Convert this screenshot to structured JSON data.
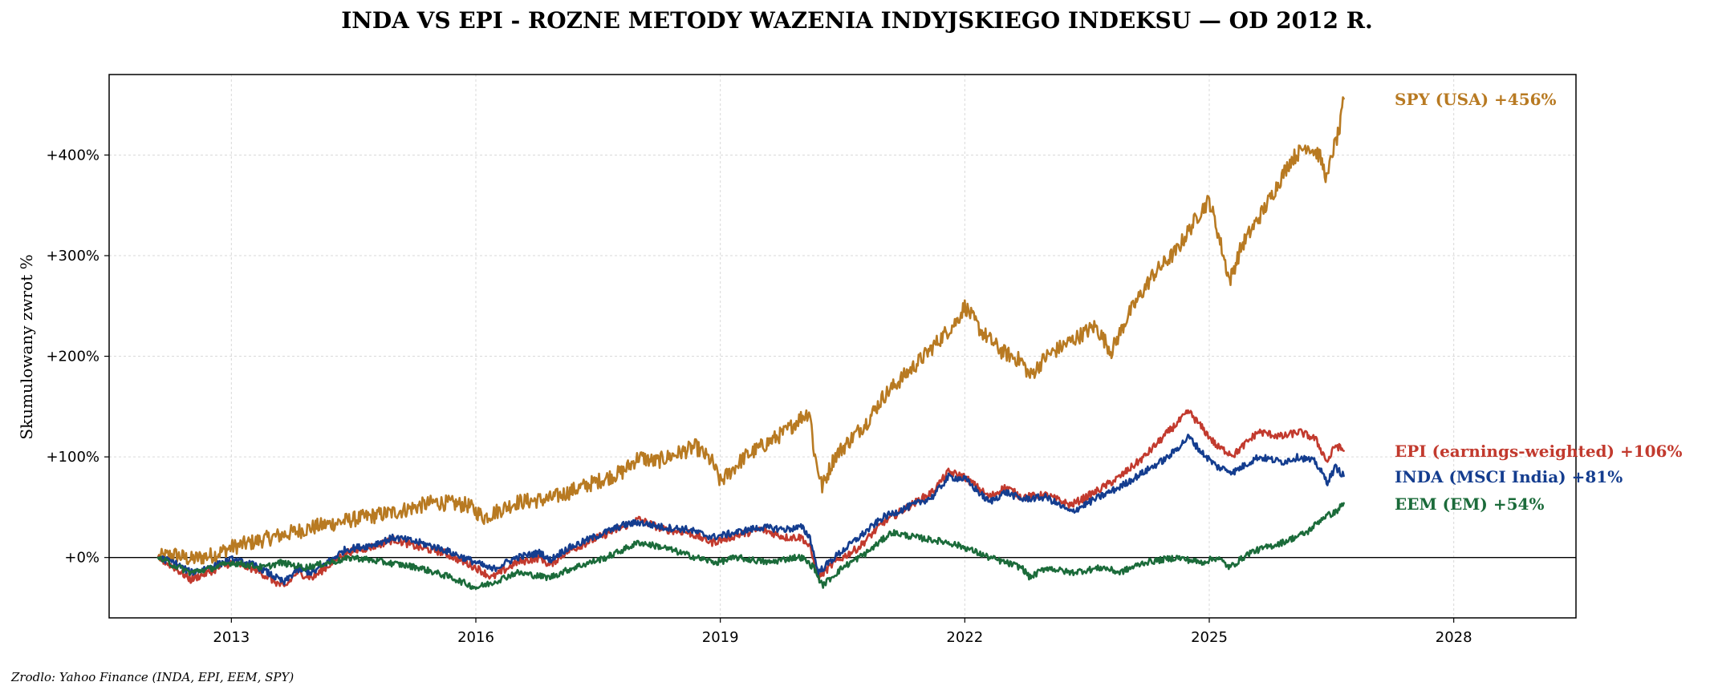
{
  "chart_data": {
    "type": "line",
    "title": "INDA VS EPI - ROZNE METODY WAZENIA INDYJSKIEGO INDEKSU — OD 2012 R.",
    "xlabel": "",
    "ylabel": "Skumulowany zwrot %",
    "source": "Zrodlo: Yahoo Finance (INDA, EPI, EEM, SPY)",
    "xlim": [
      2011.5,
      2029.5
    ],
    "ylim": [
      -60,
      480
    ],
    "x_ticks": [
      2013,
      2016,
      2019,
      2022,
      2025,
      2028
    ],
    "x_tick_labels": [
      "2013",
      "2016",
      "2019",
      "2022",
      "2025",
      "2028"
    ],
    "y_ticks": [
      0,
      100,
      200,
      300,
      400
    ],
    "y_tick_labels": [
      "+0%",
      "+100%",
      "+200%",
      "+300%",
      "+400%"
    ],
    "grid": true,
    "zero_line": true,
    "series": [
      {
        "name": "SPY (USA)",
        "end_label": "SPY (USA)  +456%",
        "color": "#b87a22",
        "points": [
          [
            2012.1,
            0
          ],
          [
            2012.3,
            3
          ],
          [
            2012.5,
            -2
          ],
          [
            2012.8,
            3
          ],
          [
            2013.0,
            10
          ],
          [
            2013.5,
            20
          ],
          [
            2014.0,
            30
          ],
          [
            2014.5,
            38
          ],
          [
            2015.0,
            45
          ],
          [
            2015.5,
            55
          ],
          [
            2015.9,
            52
          ],
          [
            2016.1,
            40
          ],
          [
            2016.5,
            55
          ],
          [
            2016.9,
            58
          ],
          [
            2017.3,
            70
          ],
          [
            2017.8,
            85
          ],
          [
            2018.0,
            100
          ],
          [
            2018.2,
            95
          ],
          [
            2018.7,
            110
          ],
          [
            2018.9,
            95
          ],
          [
            2019.0,
            75
          ],
          [
            2019.3,
            100
          ],
          [
            2019.8,
            125
          ],
          [
            2020.0,
            140
          ],
          [
            2020.1,
            145
          ],
          [
            2020.15,
            105
          ],
          [
            2020.25,
            70
          ],
          [
            2020.4,
            100
          ],
          [
            2020.8,
            135
          ],
          [
            2021.0,
            160
          ],
          [
            2021.5,
            200
          ],
          [
            2021.9,
            235
          ],
          [
            2022.0,
            250
          ],
          [
            2022.2,
            225
          ],
          [
            2022.45,
            205
          ],
          [
            2022.7,
            195
          ],
          [
            2022.8,
            180
          ],
          [
            2023.0,
            200
          ],
          [
            2023.3,
            215
          ],
          [
            2023.6,
            230
          ],
          [
            2023.8,
            205
          ],
          [
            2024.0,
            240
          ],
          [
            2024.3,
            280
          ],
          [
            2024.6,
            305
          ],
          [
            2024.9,
            345
          ],
          [
            2025.0,
            355
          ],
          [
            2025.1,
            325
          ],
          [
            2025.25,
            275
          ],
          [
            2025.4,
            310
          ],
          [
            2025.7,
            350
          ],
          [
            2026.0,
            395
          ],
          [
            2026.2,
            410
          ],
          [
            2026.35,
            400
          ],
          [
            2026.45,
            375
          ],
          [
            2026.5,
            400
          ],
          [
            2026.6,
            425
          ],
          [
            2026.65,
            456
          ]
        ]
      },
      {
        "name": "EPI (earnings-weighted)",
        "end_label": "EPI (earnings-weighted)  +106%",
        "color": "#c23a2e",
        "points": [
          [
            2012.1,
            0
          ],
          [
            2012.3,
            -10
          ],
          [
            2012.5,
            -22
          ],
          [
            2012.8,
            -12
          ],
          [
            2013.0,
            -5
          ],
          [
            2013.3,
            -12
          ],
          [
            2013.65,
            -30
          ],
          [
            2013.8,
            -15
          ],
          [
            2014.0,
            -20
          ],
          [
            2014.4,
            5
          ],
          [
            2014.7,
            10
          ],
          [
            2015.0,
            18
          ],
          [
            2015.3,
            10
          ],
          [
            2015.6,
            5
          ],
          [
            2016.0,
            -10
          ],
          [
            2016.2,
            -20
          ],
          [
            2016.5,
            -5
          ],
          [
            2016.8,
            0
          ],
          [
            2016.9,
            -8
          ],
          [
            2017.1,
            5
          ],
          [
            2017.5,
            20
          ],
          [
            2017.8,
            30
          ],
          [
            2018.0,
            38
          ],
          [
            2018.3,
            28
          ],
          [
            2018.6,
            25
          ],
          [
            2018.9,
            15
          ],
          [
            2019.2,
            22
          ],
          [
            2019.5,
            28
          ],
          [
            2019.8,
            20
          ],
          [
            2020.0,
            20
          ],
          [
            2020.1,
            10
          ],
          [
            2020.2,
            -20
          ],
          [
            2020.4,
            -5
          ],
          [
            2020.7,
            10
          ],
          [
            2021.0,
            35
          ],
          [
            2021.3,
            50
          ],
          [
            2021.6,
            65
          ],
          [
            2021.8,
            85
          ],
          [
            2022.0,
            80
          ],
          [
            2022.3,
            60
          ],
          [
            2022.5,
            70
          ],
          [
            2022.7,
            60
          ],
          [
            2023.0,
            62
          ],
          [
            2023.3,
            52
          ],
          [
            2023.6,
            65
          ],
          [
            2023.9,
            80
          ],
          [
            2024.2,
            100
          ],
          [
            2024.5,
            125
          ],
          [
            2024.75,
            145
          ],
          [
            2024.9,
            130
          ],
          [
            2025.1,
            110
          ],
          [
            2025.3,
            102
          ],
          [
            2025.6,
            125
          ],
          [
            2025.9,
            120
          ],
          [
            2026.1,
            125
          ],
          [
            2026.3,
            118
          ],
          [
            2026.45,
            95
          ],
          [
            2026.55,
            112
          ],
          [
            2026.65,
            106
          ]
        ]
      },
      {
        "name": "INDA (MSCI India)",
        "end_label": "INDA (MSCI India)  +81%",
        "color": "#143d8f",
        "points": [
          [
            2012.1,
            0
          ],
          [
            2012.3,
            -5
          ],
          [
            2012.5,
            -15
          ],
          [
            2012.8,
            -8
          ],
          [
            2013.0,
            -2
          ],
          [
            2013.3,
            -8
          ],
          [
            2013.65,
            -25
          ],
          [
            2013.8,
            -12
          ],
          [
            2014.0,
            -15
          ],
          [
            2014.4,
            8
          ],
          [
            2014.7,
            12
          ],
          [
            2015.0,
            20
          ],
          [
            2015.3,
            15
          ],
          [
            2015.6,
            8
          ],
          [
            2016.0,
            -5
          ],
          [
            2016.2,
            -12
          ],
          [
            2016.5,
            0
          ],
          [
            2016.8,
            5
          ],
          [
            2016.9,
            -3
          ],
          [
            2017.1,
            8
          ],
          [
            2017.5,
            22
          ],
          [
            2017.8,
            32
          ],
          [
            2018.0,
            35
          ],
          [
            2018.3,
            30
          ],
          [
            2018.6,
            28
          ],
          [
            2018.9,
            20
          ],
          [
            2019.2,
            25
          ],
          [
            2019.5,
            30
          ],
          [
            2019.8,
            28
          ],
          [
            2020.0,
            30
          ],
          [
            2020.1,
            20
          ],
          [
            2020.2,
            -15
          ],
          [
            2020.4,
            0
          ],
          [
            2020.7,
            20
          ],
          [
            2021.0,
            40
          ],
          [
            2021.3,
            50
          ],
          [
            2021.6,
            60
          ],
          [
            2021.8,
            80
          ],
          [
            2022.0,
            78
          ],
          [
            2022.3,
            55
          ],
          [
            2022.5,
            65
          ],
          [
            2022.7,
            58
          ],
          [
            2023.0,
            60
          ],
          [
            2023.3,
            45
          ],
          [
            2023.6,
            58
          ],
          [
            2023.9,
            70
          ],
          [
            2024.2,
            85
          ],
          [
            2024.5,
            100
          ],
          [
            2024.75,
            120
          ],
          [
            2024.9,
            105
          ],
          [
            2025.1,
            90
          ],
          [
            2025.3,
            85
          ],
          [
            2025.6,
            100
          ],
          [
            2025.9,
            95
          ],
          [
            2026.1,
            100
          ],
          [
            2026.3,
            95
          ],
          [
            2026.45,
            75
          ],
          [
            2026.55,
            90
          ],
          [
            2026.65,
            81
          ]
        ]
      },
      {
        "name": "EEM (EM)",
        "end_label": "EEM (EM)  +54%",
        "color": "#1b6b3a",
        "points": [
          [
            2012.1,
            0
          ],
          [
            2012.3,
            -8
          ],
          [
            2012.5,
            -15
          ],
          [
            2012.8,
            -10
          ],
          [
            2013.0,
            -5
          ],
          [
            2013.4,
            -10
          ],
          [
            2013.6,
            -5
          ],
          [
            2013.9,
            -10
          ],
          [
            2014.2,
            -5
          ],
          [
            2014.5,
            0
          ],
          [
            2014.9,
            -5
          ],
          [
            2015.3,
            -10
          ],
          [
            2015.7,
            -20
          ],
          [
            2016.0,
            -30
          ],
          [
            2016.2,
            -25
          ],
          [
            2016.5,
            -15
          ],
          [
            2016.9,
            -20
          ],
          [
            2017.2,
            -10
          ],
          [
            2017.6,
            0
          ],
          [
            2018.0,
            15
          ],
          [
            2018.3,
            10
          ],
          [
            2018.7,
            0
          ],
          [
            2018.95,
            -5
          ],
          [
            2019.2,
            0
          ],
          [
            2019.6,
            -5
          ],
          [
            2019.9,
            0
          ],
          [
            2020.0,
            0
          ],
          [
            2020.15,
            -10
          ],
          [
            2020.25,
            -28
          ],
          [
            2020.5,
            -10
          ],
          [
            2020.8,
            5
          ],
          [
            2021.1,
            25
          ],
          [
            2021.4,
            20
          ],
          [
            2021.8,
            15
          ],
          [
            2022.0,
            10
          ],
          [
            2022.3,
            0
          ],
          [
            2022.7,
            -10
          ],
          [
            2022.8,
            -20
          ],
          [
            2023.0,
            -10
          ],
          [
            2023.3,
            -15
          ],
          [
            2023.7,
            -10
          ],
          [
            2023.9,
            -15
          ],
          [
            2024.2,
            -5
          ],
          [
            2024.6,
            0
          ],
          [
            2024.9,
            -5
          ],
          [
            2025.1,
            0
          ],
          [
            2025.25,
            -10
          ],
          [
            2025.5,
            5
          ],
          [
            2025.9,
            15
          ],
          [
            2026.2,
            25
          ],
          [
            2026.4,
            40
          ],
          [
            2026.55,
            45
          ],
          [
            2026.65,
            54
          ]
        ]
      }
    ]
  }
}
